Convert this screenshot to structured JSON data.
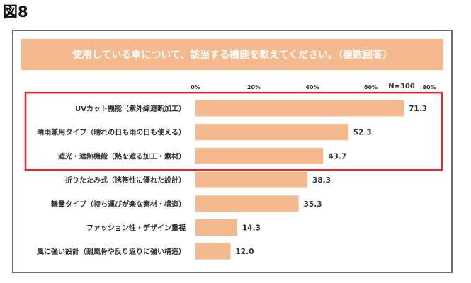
{
  "figure_label": "図8",
  "chart_data": {
    "type": "bar",
    "orientation": "horizontal",
    "title": "使用している傘について、該当する機能を教えてください。（複数回答）",
    "sample_size": "N=300",
    "xlim": [
      0,
      80
    ],
    "ticks": [
      "0%",
      "20%",
      "40%",
      "60%",
      "80%"
    ],
    "categories": [
      "UVカット機能（紫外線遮断加工）",
      "晴雨兼用タイプ（晴れの日も雨の日も使える）",
      "遮光・遮熱機能（熱を遮る加工・素材）",
      "折りたたみ式（携帯性に優れた設計）",
      "軽量タイプ（持ち運びが楽な素材・構造）",
      "ファッション性・デザイン重視",
      "風に強い設計（耐風骨や反り返りに強い構造）"
    ],
    "values": [
      71.3,
      52.3,
      43.7,
      38.3,
      35.3,
      14.3,
      12.0
    ],
    "value_labels": [
      "71.3",
      "52.3",
      "43.7",
      "38.3",
      "35.3",
      "14.3",
      "12.0"
    ],
    "highlighted_categories": 3,
    "grid": false,
    "colors": {
      "bar": "#f5b98e",
      "header": "#f5b98e",
      "highlight": "#e8262b",
      "frame": "#6e6e6e"
    }
  }
}
